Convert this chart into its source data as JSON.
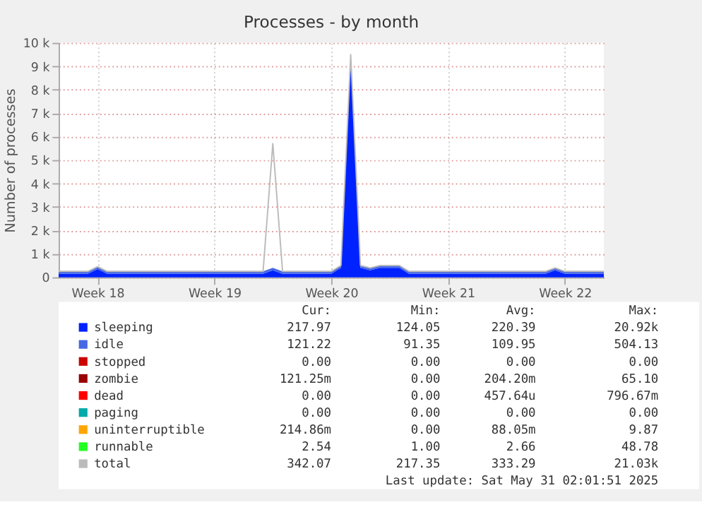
{
  "chart_data": {
    "type": "area",
    "stacked": true,
    "title": "Processes - by month",
    "ylabel": "Number of processes",
    "categories": [
      null,
      null,
      null,
      null,
      "Week 18",
      null,
      null,
      null,
      null,
      null,
      null,
      null,
      null,
      null,
      null,
      null,
      "Week 19",
      null,
      null,
      null,
      null,
      null,
      null,
      null,
      null,
      null,
      null,
      null,
      "Week 20",
      null,
      null,
      null,
      null,
      null,
      null,
      null,
      null,
      null,
      null,
      null,
      "Week 21",
      null,
      null,
      null,
      null,
      null,
      null,
      null,
      null,
      null,
      null,
      null,
      "Week 22",
      null,
      null,
      null,
      null
    ],
    "ylim": [
      0,
      10000
    ],
    "yticks": [
      0,
      {
        "value": 1000,
        "label": "1 k"
      },
      {
        "value": 2000,
        "label": "2 k"
      },
      {
        "value": 3000,
        "label": "3 k"
      },
      {
        "value": 4000,
        "label": "4 k"
      },
      {
        "value": 5000,
        "label": "5 k"
      },
      {
        "value": 6000,
        "label": "6 k"
      },
      {
        "value": 7000,
        "label": "7 k"
      },
      {
        "value": 8000,
        "label": "8 k"
      },
      {
        "value": 9000,
        "label": "9 k"
      },
      {
        "value": 10000,
        "label": "10 k"
      }
    ],
    "grid": true,
    "legend": "bottom",
    "series": [
      {
        "name": "sleeping",
        "color": "#0022ff",
        "values": [
          150,
          150,
          150,
          150,
          350,
          150,
          150,
          150,
          150,
          150,
          150,
          150,
          150,
          150,
          150,
          150,
          150,
          150,
          150,
          150,
          150,
          150,
          300,
          150,
          150,
          150,
          150,
          150,
          150,
          400,
          9300,
          400,
          300,
          400,
          400,
          400,
          150,
          150,
          150,
          150,
          150,
          150,
          150,
          150,
          150,
          150,
          150,
          150,
          150,
          150,
          150,
          300,
          150,
          150,
          150,
          150,
          150
        ]
      },
      {
        "name": "idle",
        "color": "#4668e4",
        "values": [
          100,
          100,
          100,
          100,
          100,
          100,
          100,
          100,
          100,
          100,
          100,
          100,
          100,
          100,
          100,
          100,
          100,
          100,
          100,
          100,
          100,
          100,
          100,
          100,
          100,
          100,
          100,
          100,
          100,
          100,
          100,
          100,
          100,
          100,
          100,
          100,
          100,
          100,
          100,
          100,
          100,
          100,
          100,
          100,
          100,
          100,
          100,
          100,
          100,
          100,
          100,
          100,
          100,
          100,
          100,
          100,
          100
        ]
      },
      {
        "name": "stopped",
        "color": "#cc0000",
        "values": [
          null,
          null,
          null,
          null,
          null,
          null,
          null,
          null,
          null,
          null,
          null,
          null,
          null,
          null,
          null,
          null,
          null,
          null,
          null,
          null,
          null,
          null,
          null,
          null,
          null,
          null,
          null,
          null,
          null,
          null,
          null,
          null,
          null,
          null,
          null,
          null,
          null,
          null,
          null,
          null,
          null,
          null,
          null,
          null,
          null,
          null,
          null,
          null,
          null,
          null,
          null,
          null,
          null,
          null,
          null,
          null,
          null
        ]
      },
      {
        "name": "zombie",
        "color": "#990000",
        "values": [
          null,
          null,
          null,
          null,
          null,
          null,
          null,
          null,
          null,
          null,
          null,
          null,
          null,
          null,
          null,
          null,
          null,
          null,
          null,
          null,
          null,
          null,
          null,
          null,
          null,
          null,
          null,
          null,
          null,
          null,
          null,
          null,
          null,
          null,
          null,
          null,
          null,
          null,
          null,
          null,
          null,
          null,
          null,
          null,
          null,
          null,
          null,
          null,
          null,
          null,
          null,
          null,
          null,
          null,
          null,
          null,
          null
        ]
      },
      {
        "name": "dead",
        "color": "#ff0000",
        "values": [
          null,
          null,
          null,
          null,
          null,
          null,
          null,
          null,
          null,
          null,
          null,
          null,
          null,
          null,
          null,
          null,
          null,
          null,
          null,
          null,
          null,
          null,
          null,
          null,
          null,
          null,
          null,
          null,
          null,
          null,
          null,
          null,
          null,
          null,
          null,
          null,
          null,
          null,
          null,
          null,
          null,
          null,
          null,
          null,
          null,
          null,
          null,
          null,
          null,
          null,
          null,
          null,
          null,
          null,
          null,
          null,
          null
        ]
      },
      {
        "name": "paging",
        "color": "#00aaaa",
        "values": [
          null,
          null,
          null,
          null,
          null,
          null,
          null,
          null,
          null,
          null,
          null,
          null,
          null,
          null,
          null,
          null,
          null,
          null,
          null,
          null,
          null,
          null,
          null,
          null,
          null,
          null,
          null,
          null,
          null,
          null,
          null,
          null,
          null,
          null,
          null,
          null,
          null,
          null,
          null,
          null,
          null,
          null,
          null,
          null,
          null,
          null,
          null,
          null,
          null,
          null,
          null,
          null,
          null,
          null,
          null,
          null,
          null
        ]
      },
      {
        "name": "uninterruptible",
        "color": "#ffa500",
        "values": [
          null,
          null,
          null,
          null,
          null,
          null,
          null,
          null,
          null,
          null,
          null,
          null,
          null,
          null,
          null,
          null,
          null,
          null,
          null,
          null,
          null,
          null,
          null,
          null,
          null,
          null,
          null,
          null,
          null,
          null,
          null,
          null,
          null,
          null,
          null,
          null,
          null,
          null,
          null,
          null,
          null,
          null,
          null,
          null,
          null,
          null,
          null,
          null,
          null,
          null,
          null,
          null,
          null,
          null,
          null,
          null,
          null
        ]
      },
      {
        "name": "runnable",
        "color": "#22ff22",
        "values": [
          null,
          null,
          null,
          null,
          null,
          null,
          null,
          null,
          null,
          null,
          null,
          null,
          null,
          null,
          null,
          null,
          null,
          null,
          null,
          null,
          null,
          null,
          null,
          null,
          null,
          null,
          null,
          null,
          null,
          null,
          null,
          null,
          null,
          null,
          null,
          null,
          null,
          null,
          null,
          null,
          null,
          null,
          null,
          null,
          null,
          null,
          null,
          null,
          null,
          null,
          null,
          null,
          null,
          null,
          null,
          null,
          null
        ]
      },
      {
        "name": "total",
        "color": "#bbbbbb",
        "type": "line",
        "values": [
          250,
          250,
          250,
          250,
          450,
          250,
          250,
          250,
          250,
          250,
          250,
          250,
          250,
          250,
          250,
          250,
          250,
          250,
          250,
          250,
          250,
          250,
          5700,
          250,
          250,
          250,
          250,
          250,
          250,
          500,
          9500,
          500,
          400,
          500,
          500,
          500,
          250,
          250,
          250,
          250,
          250,
          250,
          250,
          250,
          250,
          250,
          250,
          250,
          250,
          250,
          250,
          400,
          250,
          250,
          250,
          250,
          250
        ]
      }
    ],
    "annotations": [
      "Cur:",
      "Min:",
      "Avg:",
      "Max:",
      "217.97",
      "124.05",
      "220.39",
      "20.92k",
      "121.22",
      "91.35",
      "109.95",
      "504.13",
      "0.00",
      "0.00",
      "0.00",
      "0.00",
      "121.25m",
      "0.00",
      "204.20m",
      "65.10",
      "0.00",
      "0.00",
      "457.64u",
      "796.67m",
      "0.00",
      "0.00",
      "0.00",
      "0.00",
      "214.86m",
      "0.00",
      "88.05m",
      "9.87",
      "2.54",
      "1.00",
      "2.66",
      "48.78",
      "342.07",
      "217.35",
      "333.29",
      "21.03k",
      "Last update: Sat May 31 02:01:51 2025"
    ]
  }
}
